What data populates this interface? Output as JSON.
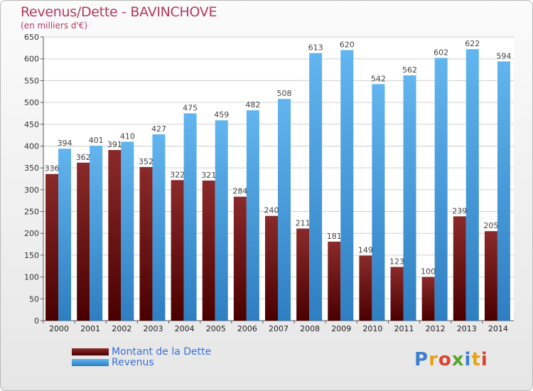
{
  "title": "Revenus/Dette - BAVINCHOVE",
  "subtitle": "(en milliers d'€)",
  "legend": {
    "debt_label": "Montant de la Dette",
    "revenue_label": "Revenus"
  },
  "logo": "Proxiti",
  "colors": {
    "debt": "#7a1a1a",
    "debt_dark": "#4a0000",
    "revenue": "#5aaee8",
    "revenue_dark": "#2f7fc4",
    "title": "#b23a5e",
    "legend_text": "#3a6fd8"
  },
  "chart_data": {
    "type": "bar",
    "title": "Revenus/Dette - BAVINCHOVE",
    "ylabel": "(en milliers d'€)",
    "xlabel": "",
    "ylim": [
      0,
      650
    ],
    "ytick_step": 50,
    "grid": true,
    "legend_position": "bottom-left",
    "categories": [
      "2000",
      "2001",
      "2002",
      "2003",
      "2004",
      "2005",
      "2006",
      "2007",
      "2008",
      "2009",
      "2010",
      "2011",
      "2012",
      "2013",
      "2014"
    ],
    "series": [
      {
        "name": "Montant de la Dette",
        "values": [
          336,
          362,
          391,
          352,
          322,
          321,
          284,
          240,
          211,
          181,
          149,
          123,
          100,
          239,
          205
        ],
        "labels": [
          "336",
          "362",
          "391",
          "352",
          "322",
          "321",
          "284",
          "240",
          "211",
          "181",
          "149",
          "123",
          "100",
          "239",
          "205"
        ]
      },
      {
        "name": "Revenus",
        "values": [
          394,
          401,
          410,
          427,
          475,
          459,
          482,
          508,
          613,
          620,
          542,
          562,
          602,
          622,
          594
        ],
        "labels": [
          "394",
          "401",
          "410",
          "427",
          "475",
          "459",
          "482",
          "508",
          "613",
          "620",
          "542",
          "562",
          "602",
          "622",
          "594"
        ]
      }
    ]
  }
}
